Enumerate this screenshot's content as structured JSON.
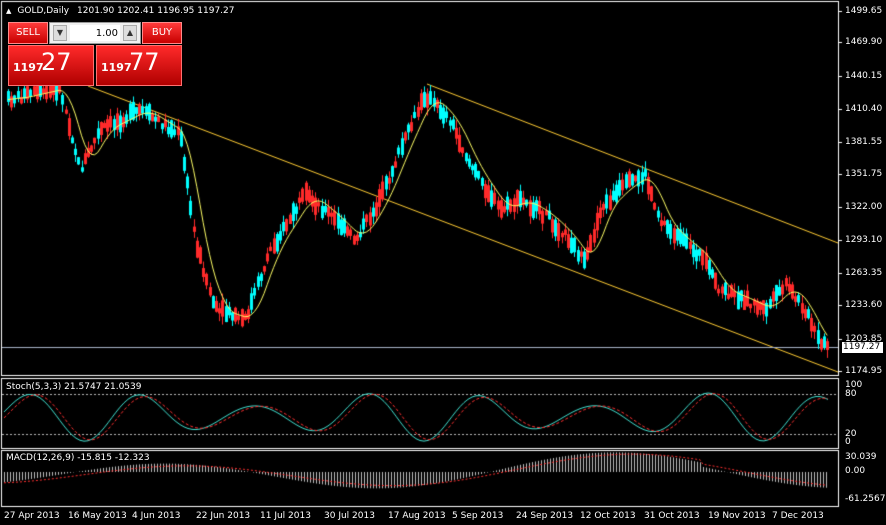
{
  "header": {
    "symbol": "GOLD,Daily",
    "ohlc": "1201.90 1202.41 1196.95 1197.27"
  },
  "trade_panel": {
    "sell_label": "SELL",
    "buy_label": "BUY",
    "lot_value": "1.00",
    "sell_price_prefix": "1197",
    "sell_price_main": "27",
    "buy_price_prefix": "1197",
    "buy_price_main": "77"
  },
  "price_axis": {
    "labels": [
      "1499.65",
      "1469.90",
      "1440.15",
      "1410.40",
      "1381.55",
      "1351.75",
      "1322.00",
      "1293.10",
      "1263.35",
      "1233.60",
      "1203.85",
      "1174.95"
    ],
    "current_price": "1197.27"
  },
  "stoch": {
    "header": "Stoch(5,3,3) 21.5747 21.0539",
    "levels": [
      "100",
      "80",
      "20",
      "0"
    ]
  },
  "macd": {
    "header": "MACD(12,26,9) -15.815 -12.323",
    "levels": [
      "30.039",
      "0.00",
      "-61.2567"
    ]
  },
  "time_axis": {
    "labels": [
      "27 Apr 2013",
      "16 May 2013",
      "4 Jun 2013",
      "22 Jun 2013",
      "11 Jul 2013",
      "30 Jul 2013",
      "17 Aug 2013",
      "5 Sep 2013",
      "24 Sep 2013",
      "12 Oct 2013",
      "31 Oct 2013",
      "19 Nov 2013",
      "7 Dec 2013"
    ]
  },
  "colors": {
    "background": "#000000",
    "bull_candle": "#00ffff",
    "bear_candle": "#ff2a2a",
    "moving_average": "#ffff66",
    "channel": "#ffcc33",
    "grid_border": "#ffffff",
    "stoch_main": "#40e0d0",
    "stoch_signal": "#ff3030",
    "macd_histogram": "#c0c0c0",
    "macd_signal": "#ff3030",
    "price_line": "#a9b4c8"
  }
}
